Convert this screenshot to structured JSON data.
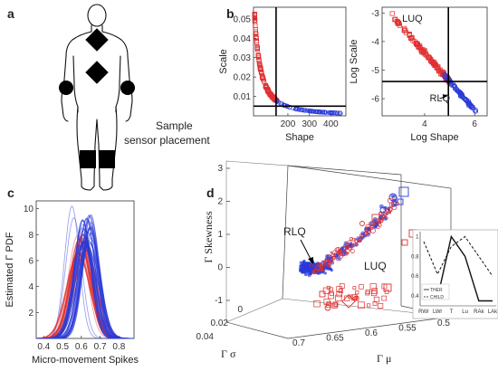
{
  "panel_labels": {
    "a": "a",
    "b": "b",
    "c": "c",
    "d": "d"
  },
  "panel_a": {
    "caption_line1": "Sample",
    "caption_line2": "sensor placement"
  },
  "colors": {
    "red": "#e03030",
    "blue": "#2a3ad8",
    "black": "#000000"
  },
  "chart_data": [
    {
      "id": "b-left",
      "type": "scatter",
      "xlabel": "Shape",
      "ylabel": "Scale",
      "xlim": [
        40,
        470
      ],
      "ylim": [
        0,
        0.056
      ],
      "xticks": [
        {
          "v": 200,
          "label": "200"
        },
        {
          "v": 300,
          "label": "300"
        },
        {
          "v": 400,
          "label": "400"
        }
      ],
      "yticks": [
        {
          "v": 0.01,
          "label": "0.01"
        },
        {
          "v": 0.02,
          "label": "0.02"
        },
        {
          "v": 0.03,
          "label": "0.03"
        },
        {
          "v": 0.04,
          "label": "0.04"
        },
        {
          "v": 0.05,
          "label": "0.05"
        }
      ],
      "vline": 145,
      "hline": 0.005,
      "series": [
        {
          "color": "red",
          "marker": "square",
          "curve": {
            "x0": 45,
            "x1": 150,
            "k": 0.052,
            "p": 1.6,
            "ref": 45
          }
        },
        {
          "color": "blue",
          "marker": "circle",
          "curve": {
            "x0": 140,
            "x1": 450,
            "k": 0.052,
            "p": 1.6,
            "ref": 45
          }
        }
      ]
    },
    {
      "id": "b-right",
      "type": "scatter",
      "xlabel": "Log Shape",
      "ylabel": "Log Scale",
      "xlim": [
        2.3,
        6.5
      ],
      "ylim": [
        -6.6,
        -2.8
      ],
      "xticks": [
        {
          "v": 4,
          "label": "4"
        },
        {
          "v": 6,
          "label": "6"
        }
      ],
      "yticks": [
        {
          "v": -6,
          "label": "-6"
        },
        {
          "v": -5,
          "label": "-5"
        },
        {
          "v": -4,
          "label": "-4"
        },
        {
          "v": -3,
          "label": "-3"
        }
      ],
      "vline": 4.95,
      "hline": -5.4,
      "annotations": [
        {
          "text": "LUQ",
          "x": 3.1,
          "y": -3.3
        },
        {
          "text": "RLQ",
          "x": 4.2,
          "y": -6.1
        }
      ],
      "series": [
        {
          "color": "red",
          "marker": "square",
          "line": {
            "x0": 2.6,
            "x1": 5.0,
            "y0": -3.0,
            "slope": -1.0
          }
        },
        {
          "color": "blue",
          "marker": "circle",
          "line": {
            "x0": 4.8,
            "x1": 6.1,
            "y0": -3.0,
            "slope": -1.0
          }
        }
      ]
    },
    {
      "id": "c",
      "type": "line",
      "xlabel": "Micro-movement Spikes",
      "ylabel": "Estimated Γ PDF",
      "xlim": [
        0.36,
        0.88
      ],
      "ylim": [
        0,
        10.6
      ],
      "xticks": [
        {
          "v": 0.4,
          "label": "0.4"
        },
        {
          "v": 0.5,
          "label": "0.5"
        },
        {
          "v": 0.6,
          "label": "0.6"
        },
        {
          "v": 0.7,
          "label": "0.7"
        },
        {
          "v": 0.8,
          "label": "0.8"
        }
      ],
      "yticks": [
        {
          "v": 2,
          "label": "2"
        },
        {
          "v": 4,
          "label": "4"
        },
        {
          "v": 6,
          "label": "6"
        },
        {
          "v": 8,
          "label": "8"
        },
        {
          "v": 10,
          "label": "10"
        }
      ],
      "families": [
        {
          "color": "red",
          "count": 22,
          "mean_range": [
            0.58,
            0.63
          ],
          "peak_range": [
            6.4,
            8.1
          ]
        },
        {
          "color": "blue",
          "count": 26,
          "mean_range": [
            0.6,
            0.655
          ],
          "peak_range": [
            7.0,
            9.6
          ]
        }
      ],
      "outliers": [
        {
          "color": "blue",
          "mean": 0.55,
          "peak": 10.2
        },
        {
          "color": "blue",
          "mean": 0.56,
          "peak": 9.3
        }
      ]
    },
    {
      "id": "d",
      "type": "scatter",
      "zlabel": "Γ Skewness",
      "xlabel": "Γ μ",
      "ylabel": "Γ σ",
      "zticks": [
        {
          "v": -1,
          "label": "-1"
        },
        {
          "v": 0,
          "label": "0"
        },
        {
          "v": 1,
          "label": "1"
        },
        {
          "v": 2,
          "label": "2"
        },
        {
          "v": 3,
          "label": "3"
        }
      ],
      "xticks": [
        {
          "v": 0.7,
          "label": "0.7"
        },
        {
          "v": 0.65,
          "label": "0.65"
        },
        {
          "v": 0.6,
          "label": "0.6"
        },
        {
          "v": 0.55,
          "label": "0.55"
        },
        {
          "v": 0.5,
          "label": "0.5"
        }
      ],
      "yticks": [
        {
          "v": 0,
          "label": "0"
        },
        {
          "v": 0.02,
          "label": "0.02"
        },
        {
          "v": 0.04,
          "label": "0.04"
        }
      ],
      "annotations": [
        {
          "text": "RLQ"
        },
        {
          "text": "LUQ"
        }
      ]
    },
    {
      "id": "d-inset",
      "type": "line",
      "categories": [
        "RWr",
        "LWr",
        "T",
        "Lu",
        "RAk",
        "LAk"
      ],
      "yticks": [
        {
          "v": 0.4,
          "label": "0.4"
        },
        {
          "v": 0.6,
          "label": "0.6"
        },
        {
          "v": 0.8,
          "label": "0.8"
        },
        {
          "v": 1,
          "label": "1"
        }
      ],
      "ylim": [
        0.3,
        1.05
      ],
      "legend": [
        "THER",
        "CHILD"
      ],
      "series": [
        {
          "name": "THER",
          "style": "solid",
          "values": [
            0.4,
            0.38,
            1.0,
            0.8,
            0.35,
            0.35
          ]
        },
        {
          "name": "CHILD",
          "style": "dashed",
          "values": [
            0.95,
            0.62,
            0.9,
            1.0,
            0.8,
            0.6
          ]
        }
      ]
    }
  ]
}
